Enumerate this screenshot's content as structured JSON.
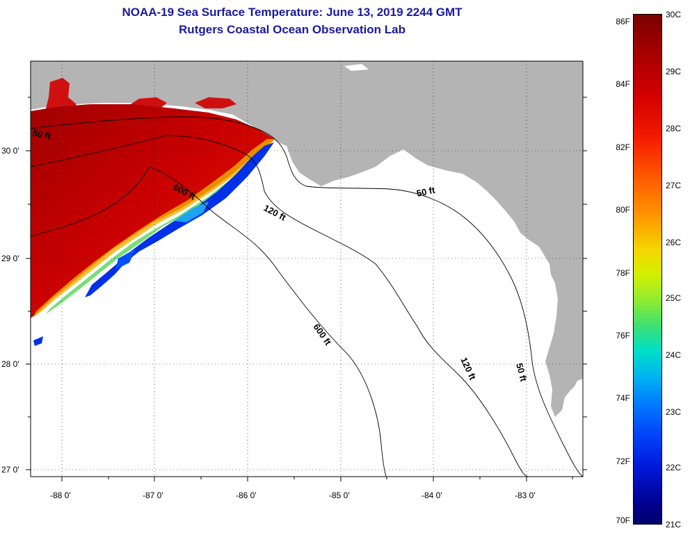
{
  "title": {
    "line1": "NOAA-19 Sea Surface Temperature:  June 13, 2019 2244 GMT",
    "line2": "Rutgers Coastal Ocean Observation Lab"
  },
  "map": {
    "lon_labels": [
      "-88 0'",
      "-87 0'",
      "-86 0'",
      "-85 0'",
      "-84 0'",
      "-83 0'"
    ],
    "lat_labels": [
      "30 0'",
      "29 0'",
      "28 0'",
      "27 0'"
    ],
    "contour_labels": [
      "50 ft",
      "600 ft",
      "120 ft",
      "50 ft",
      "600 ft",
      "120 ft",
      "50 ft"
    ],
    "colors": {
      "land": "#b4b4b4",
      "ocean_no_data": "#ffffff",
      "sst_hot": "#a80000",
      "sst_warm": "#e81400",
      "sst_cool": "#0030e8"
    }
  },
  "colorbar": {
    "fahrenheit_labels": [
      "86F",
      "84F",
      "82F",
      "80F",
      "78F",
      "76F",
      "74F",
      "72F",
      "70F"
    ],
    "celsius_labels": [
      "30C",
      "29C",
      "28C",
      "27C",
      "26C",
      "25C",
      "24C",
      "23C",
      "22C",
      "21C"
    ]
  }
}
